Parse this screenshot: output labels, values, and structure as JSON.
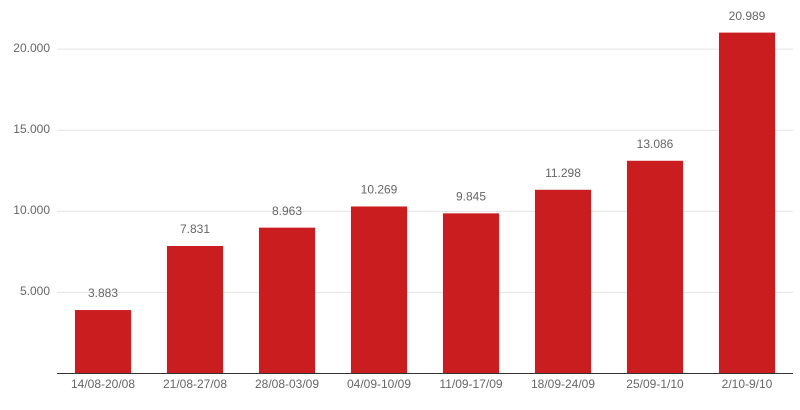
{
  "chart_data": {
    "type": "bar",
    "categories": [
      "14/08-20/08",
      "21/08-27/08",
      "28/08-03/09",
      "04/09-10/09",
      "11/09-17/09",
      "18/09-24/09",
      "25/09-1/10",
      "2/10-9/10"
    ],
    "values": [
      3883,
      7831,
      8963,
      10269,
      9845,
      11298,
      13086,
      20989
    ],
    "value_labels": [
      "3.883",
      "7.831",
      "8.963",
      "10.269",
      "9.845",
      "11.298",
      "13.086",
      "20.989"
    ],
    "color": "#c91d1f",
    "ylim": [
      0,
      23000
    ],
    "yticks": [
      {
        "value": 5000,
        "label": "5.000"
      },
      {
        "value": 10000,
        "label": "10.000"
      },
      {
        "value": 15000,
        "label": "15.000"
      },
      {
        "value": 20000,
        "label": "20.000"
      }
    ],
    "grid": true
  }
}
